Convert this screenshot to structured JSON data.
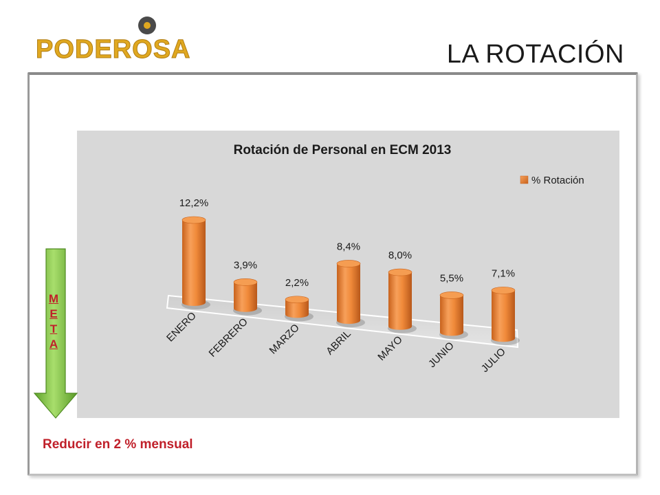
{
  "slide": {
    "title": "LA ROTACIÓN",
    "logo_text": "PODEROSA",
    "goal_text": "Reducir en 2 % mensual",
    "meta_letters": [
      "M",
      "E",
      "T",
      "A"
    ]
  },
  "colors": {
    "bar": "#F0883A",
    "bar_dark": "#C8621C",
    "logo": "#E0A820",
    "accent_red": "#C0202A",
    "arrow_green": "#7DC040"
  },
  "chart_data": {
    "type": "bar",
    "title": "Rotación de Personal en ECM 2013",
    "categories": [
      "ENERO",
      "FEBRERO",
      "MARZO",
      "ABRIL",
      "MAYO",
      "JUNIO",
      "JULIO"
    ],
    "series": [
      {
        "name": "% Rotación",
        "values": [
          12.2,
          3.9,
          2.2,
          8.4,
          8.0,
          5.5,
          7.1
        ],
        "labels": [
          "12,2%",
          "3,9%",
          "2,2%",
          "8,4%",
          "8,0%",
          "5,5%",
          "7,1%"
        ]
      }
    ],
    "ylim": [
      0,
      14
    ],
    "grid": false,
    "legend_position": "top-right",
    "style": "3d-cylinder"
  }
}
